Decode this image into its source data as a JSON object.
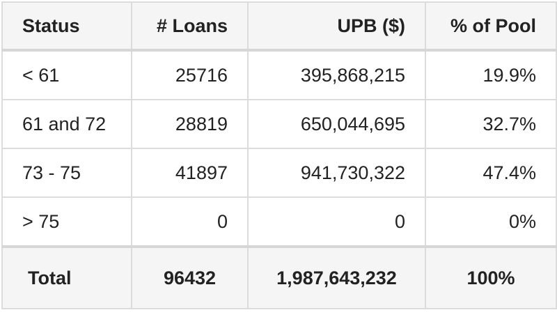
{
  "table": {
    "headers": [
      "Status",
      "# Loans",
      "UPB ($)",
      "% of Pool"
    ],
    "rows": [
      [
        "< 61",
        "25716",
        "395,868,215",
        "19.9%"
      ],
      [
        "61 and 72",
        "28819",
        "650,044,695",
        "32.7%"
      ],
      [
        "73 - 75",
        "41897",
        "941,730,322",
        "47.4%"
      ],
      [
        "> 75",
        "0",
        "0",
        "0%"
      ]
    ],
    "total": [
      "Total",
      "96432",
      "1,987,643,232",
      "100%"
    ]
  }
}
